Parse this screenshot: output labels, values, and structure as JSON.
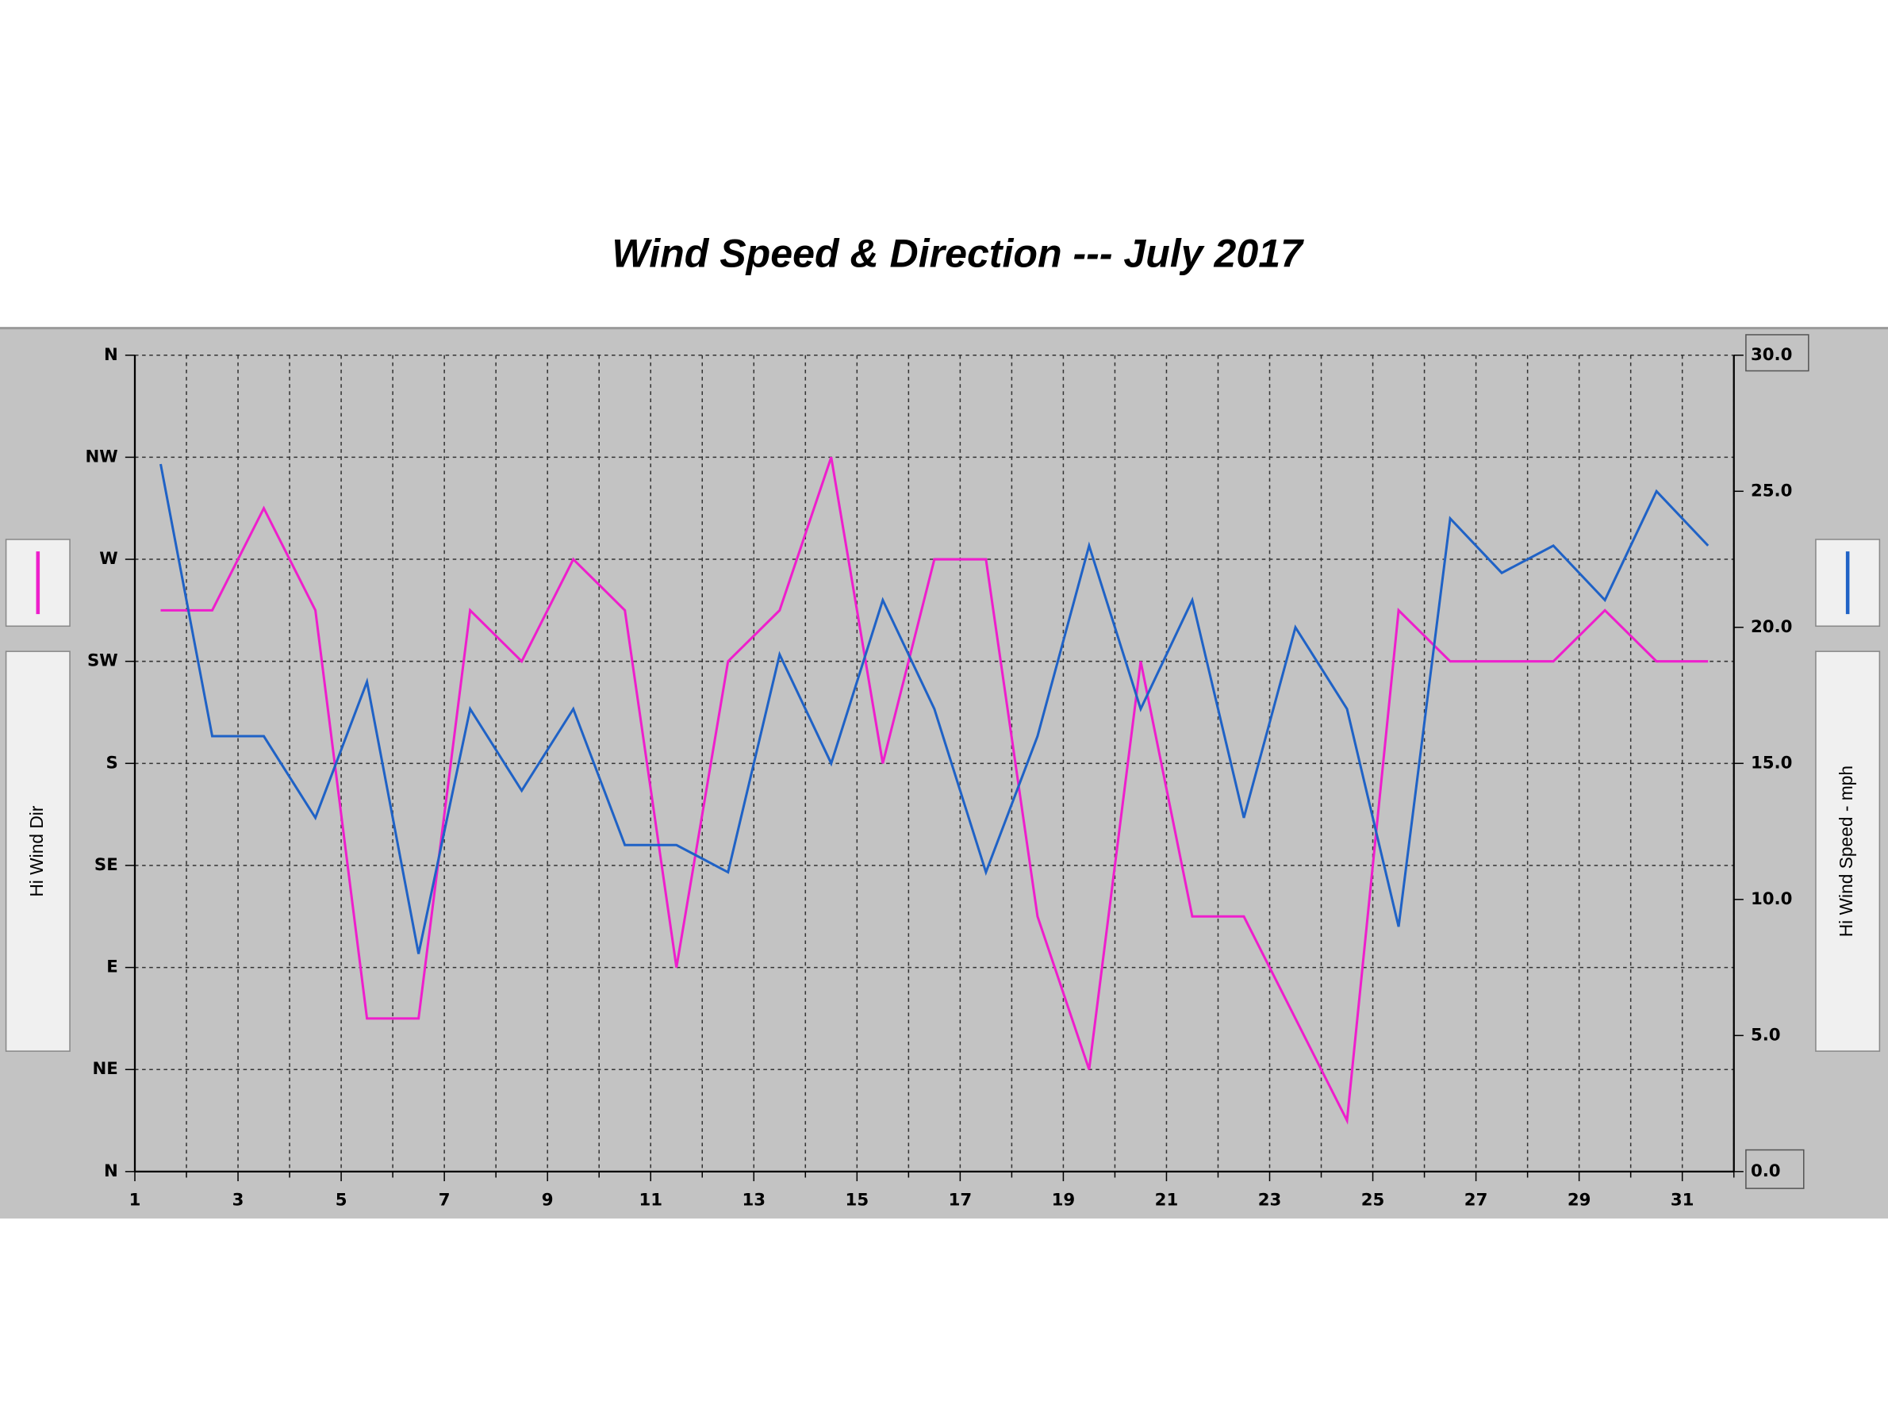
{
  "chart_data": {
    "type": "line",
    "title": "Wind Speed & Direction --- July 2017",
    "x": [
      1.5,
      2.5,
      3.5,
      4.5,
      5.5,
      6.5,
      7.5,
      8.5,
      9.5,
      10.5,
      11.5,
      12.5,
      13.5,
      14.5,
      15.5,
      16.5,
      17.5,
      18.5,
      19.5,
      20.5,
      21.5,
      22.5,
      23.5,
      24.5,
      25.5,
      26.5,
      27.5,
      28.5,
      29.5,
      30.5,
      31.5
    ],
    "xlim": [
      1,
      32
    ],
    "xticks": [
      1,
      3,
      5,
      7,
      9,
      11,
      13,
      15,
      17,
      19,
      21,
      23,
      25,
      27,
      29,
      31
    ],
    "x_minor_ticks": [
      2,
      4,
      6,
      8,
      10,
      12,
      14,
      16,
      18,
      20,
      22,
      24,
      26,
      28,
      30,
      32
    ],
    "ylim": [
      0,
      360
    ],
    "yticks": [
      {
        "value": 0,
        "label": "N"
      },
      {
        "value": 45,
        "label": "NE"
      },
      {
        "value": 90,
        "label": "E"
      },
      {
        "value": 135,
        "label": "SE"
      },
      {
        "value": 180,
        "label": "S"
      },
      {
        "value": 225,
        "label": "SW"
      },
      {
        "value": 270,
        "label": "W"
      },
      {
        "value": 315,
        "label": "NW"
      },
      {
        "value": 360,
        "label": "N"
      }
    ],
    "y2lim": [
      0,
      30
    ],
    "y2ticks": [
      {
        "value": 0,
        "label": "0.0"
      },
      {
        "value": 5,
        "label": "5.0"
      },
      {
        "value": 10,
        "label": "10.0"
      },
      {
        "value": 15,
        "label": "15.0"
      },
      {
        "value": 20,
        "label": "20.0"
      },
      {
        "value": 25,
        "label": "25.0"
      },
      {
        "value": 30,
        "label": "30.0"
      }
    ],
    "grid": true,
    "series": [
      {
        "name": "Hi Wind Dir",
        "color": "#ee1fcc",
        "values": [
          247.5,
          247.5,
          292.5,
          247.5,
          67.5,
          67.5,
          247.5,
          225,
          270,
          247.5,
          90,
          225,
          247.5,
          315,
          180,
          270,
          270,
          112.5,
          45,
          225,
          112.5,
          112.5,
          67.5,
          22.5,
          247.5,
          225,
          225,
          225,
          247.5,
          225,
          225
        ]
      },
      {
        "name": "Hi Wind Speed - mph",
        "color": "#1f62c6",
        "axis": "y2",
        "values": [
          26,
          16,
          16,
          13,
          18,
          8,
          17,
          14,
          17,
          12,
          12,
          11,
          19,
          15,
          21,
          17,
          11,
          16,
          23,
          17,
          21,
          13,
          20,
          17,
          9,
          24,
          22,
          23,
          21,
          25,
          23
        ]
      }
    ]
  }
}
